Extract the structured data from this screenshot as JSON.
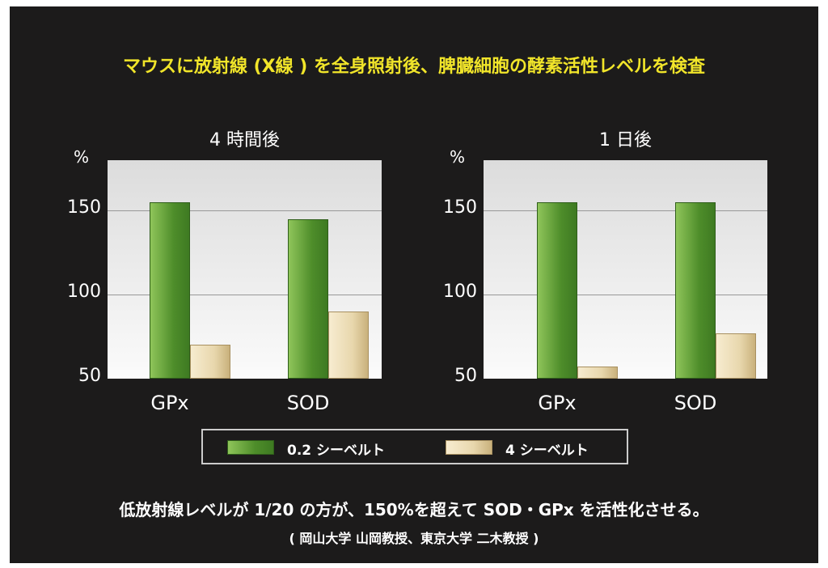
{
  "chart_data": [
    {
      "type": "bar",
      "title": "4 時間後",
      "ylabel": "%",
      "ylim": [
        50,
        180
      ],
      "yticks": [
        50,
        100,
        150
      ],
      "categories": [
        "GPx",
        "SOD"
      ],
      "series": [
        {
          "name": "0.2 シーベルト",
          "color": "#4e8d2a",
          "values": [
            155,
            145
          ]
        },
        {
          "name": "4 シーベルト",
          "color": "#e8d7ad",
          "values": [
            70,
            90
          ]
        }
      ]
    },
    {
      "type": "bar",
      "title": "1 日後",
      "ylabel": "%",
      "ylim": [
        50,
        180
      ],
      "yticks": [
        50,
        100,
        150
      ],
      "categories": [
        "GPx",
        "SOD"
      ],
      "series": [
        {
          "name": "0.2 シーベルト",
          "color": "#4e8d2a",
          "values": [
            155,
            155
          ]
        },
        {
          "name": "4 シーベルト",
          "color": "#e8d7ad",
          "values": [
            57,
            77
          ]
        }
      ]
    }
  ],
  "header": {
    "title": "マウスに放射線 (X線 ) を全身照射後、脾臓細胞の酵素活性レベルを検査"
  },
  "legend": [
    "0.2 シーベルト",
    "4 シーベルト"
  ],
  "footer": {
    "main": "低放射線レベルが 1/20 の方が、150%を超えて SOD・GPx を活性化させる。",
    "source": "( 岡山大学 山岡教授、東京大学 二木教授 )"
  }
}
